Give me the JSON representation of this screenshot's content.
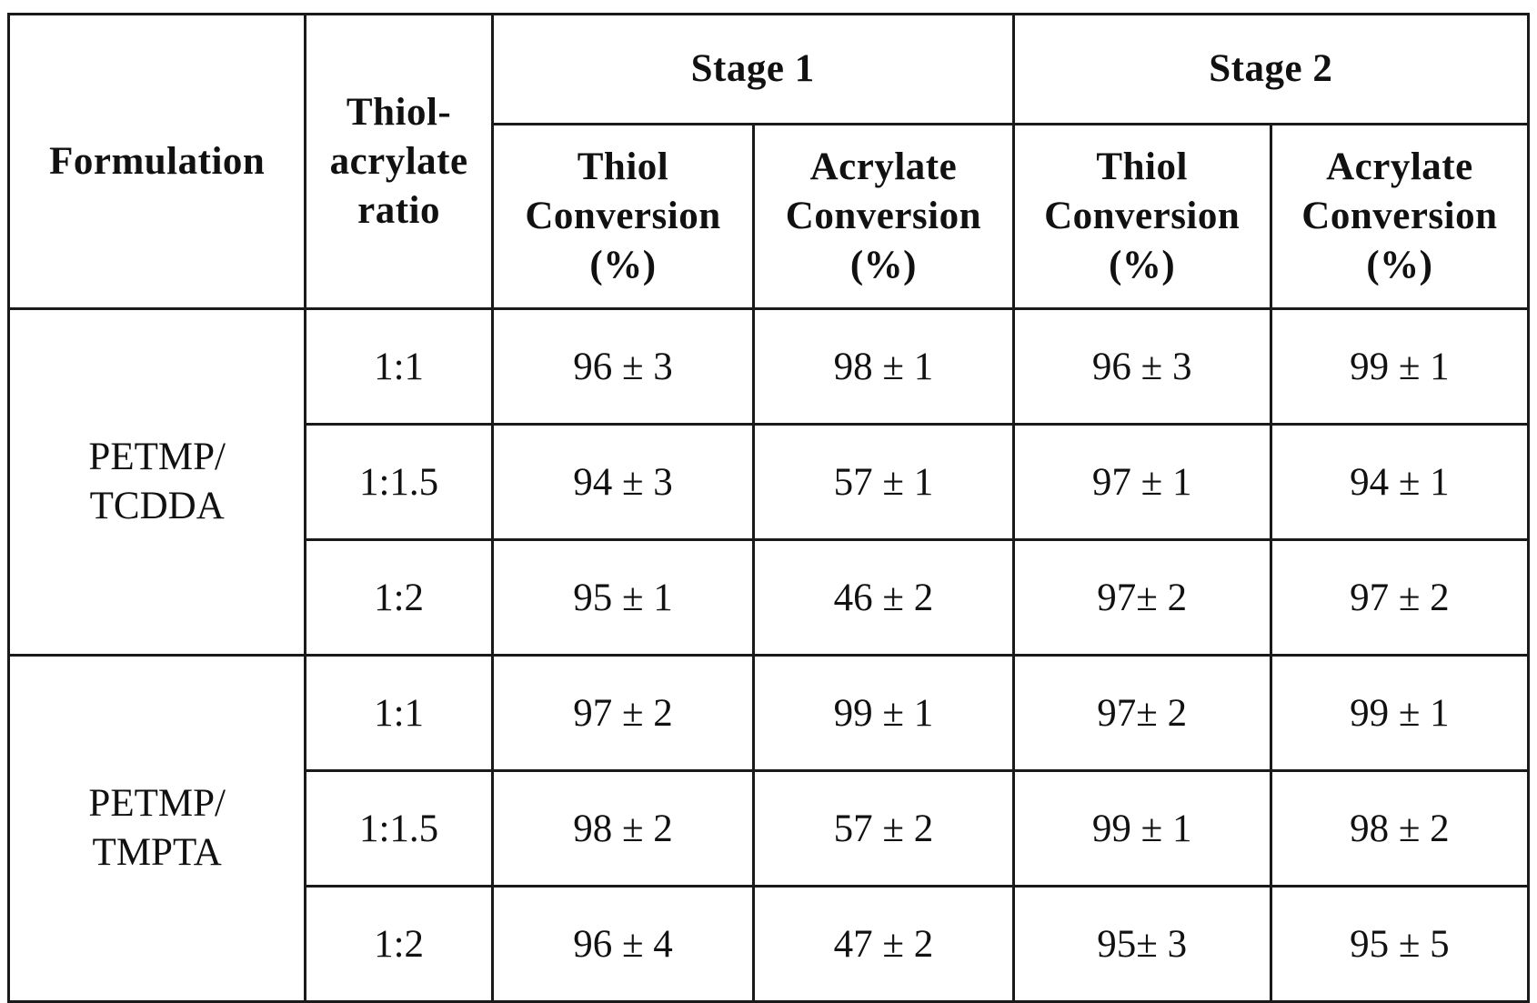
{
  "table": {
    "headers": {
      "formulation": "Formulation",
      "ratio": "Thiol-\nacrylate\nratio",
      "stage1": "Stage 1",
      "stage2": "Stage 2",
      "thiol_conversion": "Thiol\nConversion\n(%)",
      "acrylate_conversion": "Acrylate\nConversion\n(%)"
    },
    "groups": [
      {
        "formulation": "PETMP/\nTCDDA",
        "rows": [
          {
            "ratio": "1:1",
            "s1_thiol": "96 ± 3",
            "s1_acrylate": "98 ± 1",
            "s2_thiol": "96 ± 3",
            "s2_acrylate": "99 ± 1"
          },
          {
            "ratio": "1:1.5",
            "s1_thiol": "94 ± 3",
            "s1_acrylate": "57 ± 1",
            "s2_thiol": "97 ± 1",
            "s2_acrylate": "94 ± 1"
          },
          {
            "ratio": "1:2",
            "s1_thiol": "95 ± 1",
            "s1_acrylate": "46 ± 2",
            "s2_thiol": "97± 2",
            "s2_acrylate": "97 ± 2"
          }
        ]
      },
      {
        "formulation": "PETMP/\nTMPTA",
        "rows": [
          {
            "ratio": "1:1",
            "s1_thiol": "97 ± 2",
            "s1_acrylate": "99 ± 1",
            "s2_thiol": "97± 2",
            "s2_acrylate": "99 ± 1"
          },
          {
            "ratio": "1:1.5",
            "s1_thiol": "98 ± 2",
            "s1_acrylate": "57 ± 2",
            "s2_thiol": "99 ± 1",
            "s2_acrylate": "98 ± 2"
          },
          {
            "ratio": "1:2",
            "s1_thiol": "96 ± 4",
            "s1_acrylate": "47 ± 2",
            "s2_thiol": "95± 3",
            "s2_acrylate": "95 ± 5"
          }
        ]
      }
    ]
  }
}
